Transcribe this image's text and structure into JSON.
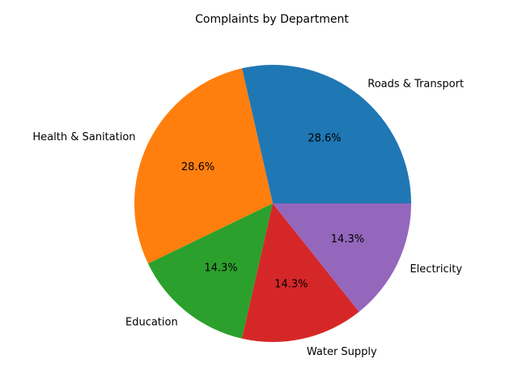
{
  "chart_data": {
    "type": "pie",
    "title": "Complaints by Department",
    "categories": [
      "Roads & Transport",
      "Health & Sanitation",
      "Education",
      "Water Supply",
      "Electricity"
    ],
    "values": [
      28.6,
      28.6,
      14.3,
      14.3,
      14.3
    ],
    "percent_labels": [
      "28.6%",
      "28.6%",
      "14.3%",
      "14.3%",
      "14.3%"
    ],
    "colors": [
      "#1f77b4",
      "#ff7f0e",
      "#2ca02c",
      "#d62728",
      "#9467bd"
    ],
    "start_angle_deg": 0,
    "direction": "counterclockwise",
    "legend": "none"
  }
}
